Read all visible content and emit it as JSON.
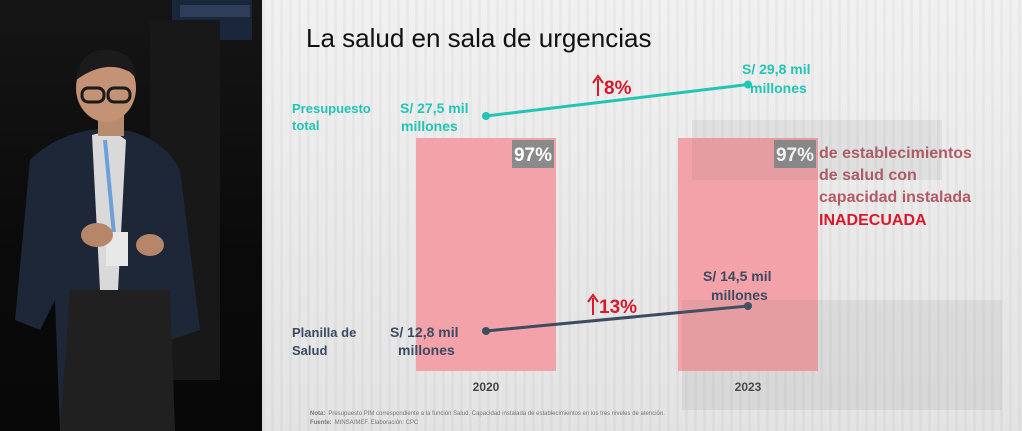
{
  "slide": {
    "title": "La salud en sala de urgencias",
    "note_label": "Nota:",
    "note_text": "Presupuesto PIM correspondiente a la función Salud. Capacidad instalada de establecimientos en los tres niveles de atención.",
    "source_label": "Fuente:",
    "source_text": "MINSA/MEF. Elaboración: CPC",
    "bar_caption_lines": [
      "de establecimientos",
      "de salud con",
      "capacidad instalada"
    ],
    "bar_caption_emphasis": "INADECUADA"
  },
  "colors": {
    "budget_line": "#22c5b4",
    "payroll_line": "#3c4a62",
    "bar_fill": "#f2a2a8",
    "badge_fill": "#8a8a8a",
    "highlight": "#d9182b",
    "caption": "#b35a63"
  },
  "chart_data": {
    "type": "bar",
    "title": "La salud en sala de urgencias",
    "categories": [
      "2020",
      "2023"
    ],
    "bars": {
      "name": "de establecimientos de salud con capacidad instalada INADECUADA",
      "values": [
        97,
        97
      ],
      "labels": [
        "97%",
        "97%"
      ],
      "unit": "%"
    },
    "series": [
      {
        "name_lines": [
          "Presupuesto",
          "total"
        ],
        "values": [
          27.5,
          29.8
        ],
        "value_labels": [
          [
            "S/ 27,5 mil",
            "millones"
          ],
          [
            "S/ 29,8 mil",
            "millones"
          ]
        ],
        "change_label": "8%"
      },
      {
        "name_lines": [
          "Planilla de",
          "Salud"
        ],
        "values": [
          12.8,
          14.5
        ],
        "value_labels": [
          [
            "S/ 12,8 mil",
            "millones"
          ],
          [
            "S/ 14,5 mil",
            "millones"
          ]
        ],
        "change_label": "13%"
      }
    ],
    "xlabel": "",
    "ylabel": "",
    "unit": "S/ mil millones"
  }
}
